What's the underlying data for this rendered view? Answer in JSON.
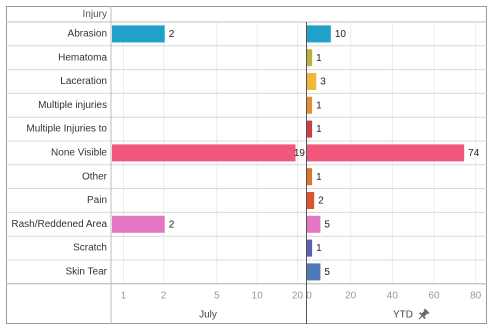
{
  "chart_data": {
    "type": "bar",
    "row_header": "Injury",
    "categories": [
      "Abrasion",
      "Hematoma",
      "Laceration",
      "Multiple injuries",
      "Multiple Injuries to",
      "None Visible",
      "Other",
      "Pain",
      "Rash/Reddened Area",
      "Scratch",
      "Skin Tear"
    ],
    "panels": [
      {
        "title": "July",
        "scale": "log",
        "xlim": [
          0.85,
          22
        ],
        "ticks": [
          1,
          2,
          5,
          10,
          20
        ],
        "values": [
          2,
          null,
          null,
          null,
          null,
          19,
          null,
          null,
          2,
          null,
          null
        ],
        "colors": [
          "#1fa1c9",
          null,
          null,
          null,
          null,
          "#f0577a",
          null,
          null,
          "#e377c2",
          null,
          null
        ]
      },
      {
        "title": "YTD",
        "scale": "linear",
        "xlim": [
          0,
          84
        ],
        "ticks": [
          0,
          20,
          40,
          60,
          80
        ],
        "values": [
          10,
          1,
          3,
          1,
          1,
          74,
          1,
          2,
          5,
          1,
          5
        ],
        "colors": [
          "#1fa1c9",
          "#b7b23e",
          "#f0b73a",
          "#e88a3a",
          "#c9413f",
          "#f0577a",
          "#d9752f",
          "#d9562f",
          "#e377c2",
          "#5a5fae",
          "#4e79b7"
        ]
      }
    ]
  },
  "pin_icon": "pin-icon"
}
